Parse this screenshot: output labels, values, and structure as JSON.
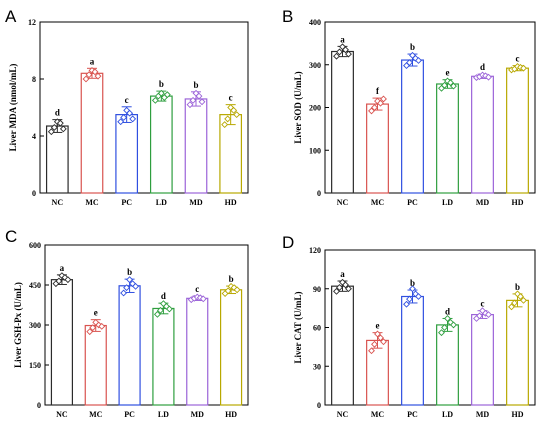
{
  "colors": {
    "NC": "#2b2b2b",
    "MC": "#d9534f",
    "PC": "#2f4fe0",
    "LD": "#2e9e3e",
    "MD": "#9b63d8",
    "HD": "#b8a800"
  },
  "chart_data": [
    {
      "panel": "A",
      "type": "bar",
      "ylabel": "Liver MDA (nmol/mL)",
      "ylim": [
        0,
        12
      ],
      "yticks": [
        0,
        4,
        8,
        12
      ],
      "ytick_labels": [
        "0",
        "4",
        "8",
        "12"
      ],
      "categories": [
        "NC",
        "MC",
        "PC",
        "LD",
        "MD",
        "HD"
      ],
      "values": [
        4.7,
        8.4,
        5.5,
        6.8,
        6.6,
        5.5
      ],
      "errors": [
        0.45,
        0.35,
        0.55,
        0.35,
        0.5,
        0.7
      ],
      "letters": [
        "d",
        "a",
        "c",
        "b",
        "b",
        "c"
      ],
      "points": [
        [
          4.3,
          4.6,
          5.0,
          4.9,
          4.5
        ],
        [
          8.0,
          8.3,
          8.6,
          8.5,
          8.2
        ],
        [
          5.0,
          5.3,
          5.8,
          5.6,
          5.2
        ],
        [
          6.5,
          6.8,
          7.0,
          6.7,
          6.9
        ],
        [
          6.2,
          6.5,
          7.0,
          6.8,
          6.4
        ],
        [
          4.8,
          5.2,
          6.0,
          5.8,
          5.5
        ]
      ]
    },
    {
      "panel": "B",
      "type": "bar",
      "ylabel": "Liver SOD (U/mL)",
      "ylim": [
        0,
        400
      ],
      "yticks": [
        0,
        100,
        200,
        300,
        400
      ],
      "ytick_labels": [
        "0",
        "100",
        "200",
        "300",
        "400"
      ],
      "categories": [
        "NC",
        "MC",
        "PC",
        "LD",
        "MD",
        "HD"
      ],
      "values": [
        331,
        208,
        311,
        255,
        273,
        292
      ],
      "errors": [
        12,
        14,
        14,
        10,
        5,
        6
      ],
      "letters": [
        "a",
        "f",
        "b",
        "e",
        "d",
        "c"
      ],
      "points": [
        [
          320,
          330,
          342,
          335,
          325
        ],
        [
          192,
          200,
          215,
          210,
          220
        ],
        [
          298,
          305,
          322,
          315,
          310
        ],
        [
          245,
          252,
          262,
          258,
          250
        ],
        [
          270,
          272,
          276,
          274,
          271
        ],
        [
          288,
          290,
          296,
          294,
          292
        ]
      ]
    },
    {
      "panel": "C",
      "type": "bar",
      "ylabel": "Liver GSH-Px (U/mL)",
      "ylim": [
        0,
        600
      ],
      "yticks": [
        0,
        150,
        300,
        450,
        600
      ],
      "ytick_labels": [
        "0",
        "150",
        "300",
        "450",
        "600"
      ],
      "categories": [
        "NC",
        "MC",
        "PC",
        "LD",
        "MD",
        "HD"
      ],
      "values": [
        470,
        298,
        447,
        362,
        400,
        432
      ],
      "errors": [
        18,
        22,
        25,
        20,
        8,
        14
      ],
      "letters": [
        "a",
        "e",
        "b",
        "d",
        "c",
        "b"
      ],
      "points": [
        [
          455,
          465,
          485,
          478,
          470
        ],
        [
          275,
          290,
          310,
          300,
          295
        ],
        [
          420,
          440,
          470,
          455,
          445
        ],
        [
          340,
          355,
          380,
          370,
          360
        ],
        [
          395,
          400,
          405,
          402,
          398
        ],
        [
          418,
          428,
          445,
          440,
          432
        ]
      ]
    },
    {
      "panel": "D",
      "type": "bar",
      "ylabel": "Liver CAT (U/mL)",
      "ylim": [
        0,
        120
      ],
      "yticks": [
        0,
        30,
        60,
        90,
        120
      ],
      "ytick_labels": [
        "0",
        "30",
        "60",
        "90",
        "120"
      ],
      "categories": [
        "NC",
        "MC",
        "PC",
        "LD",
        "MD",
        "HD"
      ],
      "values": [
        92,
        50,
        84,
        62,
        70,
        81
      ],
      "errors": [
        4,
        6,
        5,
        5,
        3,
        5
      ],
      "letters": [
        "a",
        "e",
        "b",
        "d",
        "c",
        "b"
      ],
      "points": [
        [
          88,
          91,
          95,
          93,
          90
        ],
        [
          42,
          47,
          55,
          52,
          49
        ],
        [
          78,
          82,
          90,
          86,
          84
        ],
        [
          56,
          60,
          67,
          64,
          62
        ],
        [
          67,
          69,
          73,
          71,
          70
        ],
        [
          76,
          79,
          86,
          84,
          81
        ]
      ]
    }
  ]
}
